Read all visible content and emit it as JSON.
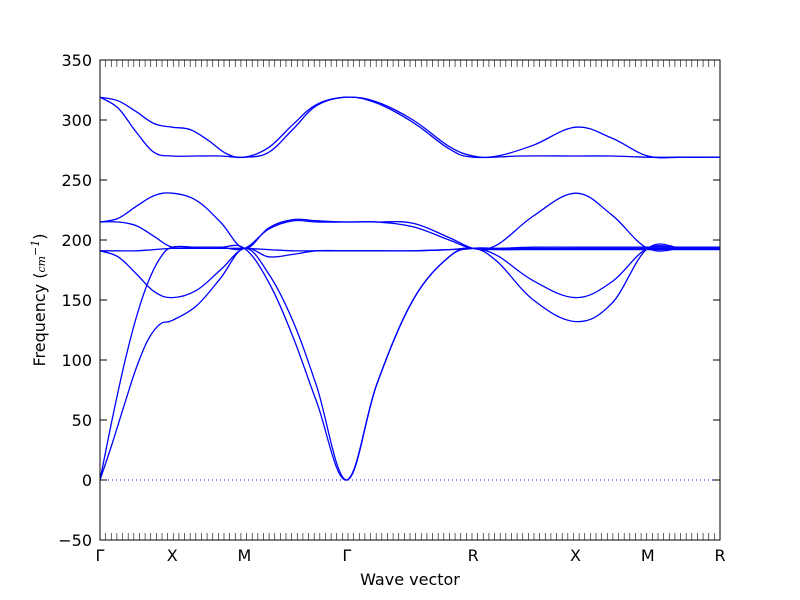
{
  "chart_data": {
    "type": "line",
    "title": "",
    "xlabel": "Wave vector",
    "ylabel_prefix": "Frequency (",
    "ylabel_unit": "cm",
    "ylabel_exp": "−1",
    "ylabel_suffix": ")",
    "ylim": [
      -50,
      350
    ],
    "yticks": [
      -50,
      0,
      50,
      100,
      150,
      200,
      250,
      300,
      350
    ],
    "x_points": [
      0,
      0.6,
      1.2,
      2.05,
      3.1,
      3.95,
      4.55,
      5.15
    ],
    "x_labels": [
      "Γ",
      "X",
      "M",
      "Γ",
      "R",
      "X",
      "M",
      "R"
    ],
    "grid": false,
    "zero_line": true,
    "color": "#0000ff",
    "series": [
      {
        "x": [
          0,
          0.15,
          0.3,
          0.45,
          0.6,
          0.75,
          0.9,
          1.05,
          1.2,
          1.4,
          1.6,
          1.8,
          2.05,
          2.3,
          2.6,
          2.9,
          3.1,
          3.3,
          3.6,
          3.95,
          4.25,
          4.55,
          4.85,
          5.15
        ],
        "y": [
          319,
          316,
          307,
          297,
          294,
          292,
          283,
          272,
          269,
          277,
          296,
          313,
          319,
          315,
          300,
          278,
          270,
          270,
          279,
          294,
          285,
          270,
          269,
          269
        ]
      },
      {
        "x": [
          0,
          0.15,
          0.3,
          0.45,
          0.6,
          0.8,
          1.0,
          1.2,
          1.4,
          1.6,
          1.8,
          2.05,
          2.3,
          2.6,
          2.9,
          3.1,
          3.5,
          3.95,
          4.25,
          4.55,
          4.85,
          5.15
        ],
        "y": [
          319,
          310,
          290,
          273,
          270,
          270,
          270,
          269,
          273,
          292,
          312,
          319,
          314,
          298,
          276,
          269,
          270,
          270,
          270,
          269,
          269,
          269
        ]
      },
      {
        "x": [
          0,
          0.15,
          0.3,
          0.45,
          0.6,
          0.8,
          1.0,
          1.2,
          1.4,
          1.6,
          1.8,
          2.05,
          2.3,
          2.6,
          2.9,
          3.1,
          3.3,
          3.6,
          3.95,
          4.25,
          4.55,
          4.85,
          5.15
        ],
        "y": [
          215,
          218,
          228,
          237,
          239,
          233,
          215,
          193,
          210,
          217,
          216,
          215,
          215,
          211,
          200,
          193,
          196,
          220,
          239,
          221,
          193,
          193,
          193
        ]
      },
      {
        "x": [
          0,
          0.15,
          0.3,
          0.45,
          0.6,
          0.8,
          1.0,
          1.2,
          1.4,
          1.6,
          1.8,
          2.05,
          2.3,
          2.6,
          2.9,
          3.1,
          3.3,
          3.6,
          3.95,
          4.25,
          4.55,
          4.85,
          5.15
        ],
        "y": [
          215,
          215,
          212,
          203,
          194,
          194,
          194,
          193,
          209,
          216,
          215,
          215,
          215,
          214,
          202,
          193,
          192,
          192,
          192,
          192,
          192,
          192,
          192
        ]
      },
      {
        "x": [
          0,
          0.15,
          0.3,
          0.45,
          0.6,
          0.8,
          1.0,
          1.2,
          1.4,
          1.6,
          1.8,
          2.05,
          2.3,
          2.6,
          2.9,
          3.1,
          3.3,
          3.6,
          3.95,
          4.25,
          4.55,
          4.85,
          5.15
        ],
        "y": [
          191,
          186,
          172,
          157,
          152,
          158,
          175,
          193,
          186,
          188,
          191,
          191,
          191,
          191,
          192,
          193,
          187,
          166,
          152,
          165,
          193,
          193,
          193
        ]
      },
      {
        "x": [
          0,
          0.15,
          0.3,
          0.45,
          0.6,
          0.8,
          1.0,
          1.2,
          1.4,
          1.6,
          1.8,
          2.05,
          2.3,
          2.6,
          2.9,
          3.1,
          3.3,
          3.6,
          3.95,
          4.25,
          4.55,
          4.85,
          5.15
        ],
        "y": [
          191,
          191,
          191,
          192,
          193,
          193,
          193,
          193,
          192,
          191,
          191,
          191,
          191,
          191,
          192,
          193,
          193,
          193,
          193,
          193,
          193,
          193,
          193
        ]
      },
      {
        "x": [
          0,
          0.1,
          0.2,
          0.3,
          0.4,
          0.5,
          0.6,
          0.8,
          1.0,
          1.2,
          1.4,
          1.6,
          1.8,
          2.05,
          2.3,
          2.6,
          2.9,
          3.1,
          3.3,
          3.6,
          3.95,
          4.25,
          4.55,
          4.85,
          5.15
        ],
        "y": [
          0,
          30,
          62,
          93,
          117,
          130,
          133,
          145,
          168,
          193,
          172,
          133,
          78,
          0,
          80,
          150,
          186,
          193,
          182,
          150,
          132,
          147,
          193,
          193,
          193
        ]
      },
      {
        "x": [
          0,
          0.1,
          0.2,
          0.3,
          0.4,
          0.5,
          0.6,
          0.8,
          1.0,
          1.2,
          1.4,
          1.6,
          1.8,
          2.05,
          2.3,
          2.6,
          2.9,
          3.1,
          3.3,
          3.6,
          3.95,
          4.25,
          4.55,
          4.85,
          5.15
        ],
        "y": [
          0,
          50,
          96,
          135,
          165,
          185,
          194,
          194,
          194,
          193,
          165,
          120,
          65,
          0,
          80,
          150,
          186,
          193,
          193,
          194,
          194,
          194,
          194,
          194,
          194
        ]
      }
    ]
  }
}
